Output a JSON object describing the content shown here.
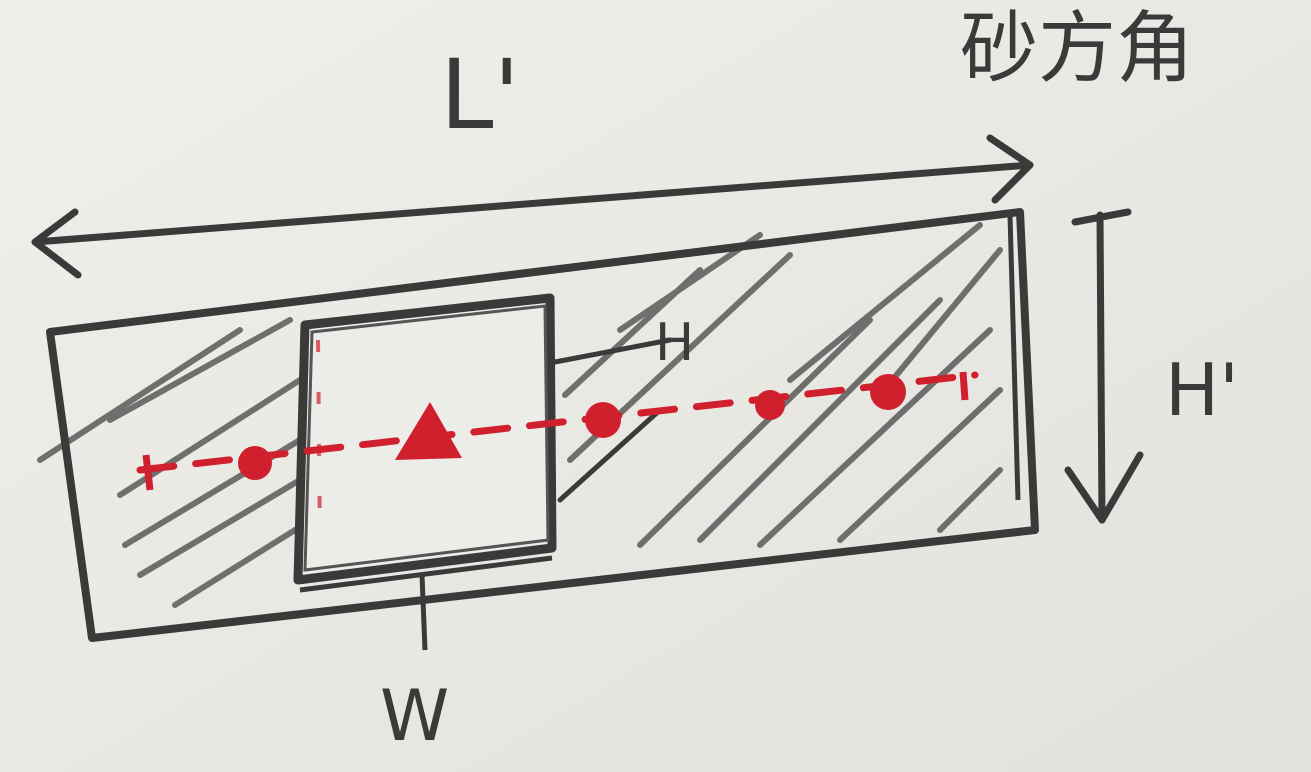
{
  "labels": {
    "length_outer": "L'",
    "height_outer": "H'",
    "height_inner": "H",
    "width_inner": "W",
    "corner_text": "砂方角"
  },
  "colors": {
    "paper": "#e9e8e3",
    "ink": "#3a3a3a",
    "hatch": "#5a5a5a",
    "marker": "#d0202e"
  }
}
